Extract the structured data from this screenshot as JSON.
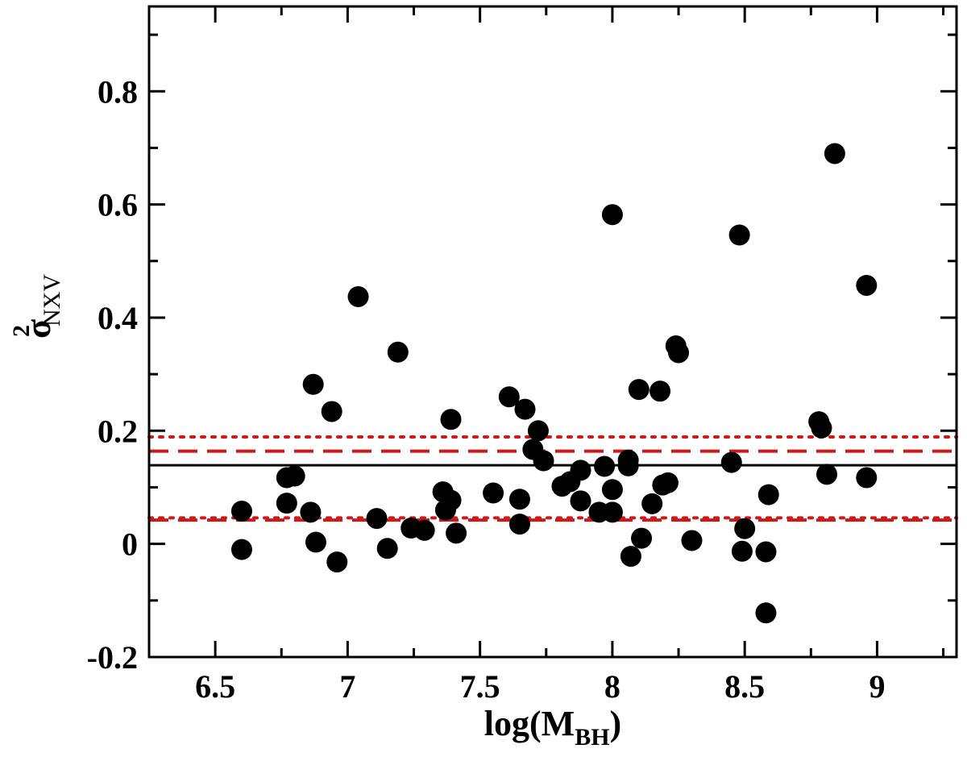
{
  "chart_data": {
    "type": "scatter",
    "title": "",
    "xlabel": {
      "main": "log(M",
      "sub": "BH",
      "close": ")"
    },
    "ylabel": {
      "symbol": "σ",
      "sup": "2",
      "sub": "NXV"
    },
    "xlim": [
      6.25,
      9.3
    ],
    "ylim": [
      -0.2,
      0.95
    ],
    "xticks": [
      {
        "value": 6.5,
        "label": "6.5"
      },
      {
        "value": 7,
        "label": "7"
      },
      {
        "value": 7.5,
        "label": "7.5"
      },
      {
        "value": 8,
        "label": "8"
      },
      {
        "value": 8.5,
        "label": "8.5"
      },
      {
        "value": 9,
        "label": "9"
      }
    ],
    "yticks": [
      {
        "value": -0.2,
        "label": "-0.2"
      },
      {
        "value": 0,
        "label": "0"
      },
      {
        "value": 0.2,
        "label": "0.2"
      },
      {
        "value": 0.4,
        "label": "0.4"
      },
      {
        "value": 0.6,
        "label": "0.6"
      },
      {
        "value": 0.8,
        "label": "0.8"
      }
    ],
    "xminor": [
      6.25,
      6.75,
      7.25,
      7.75,
      8.25,
      8.75,
      9.25
    ],
    "yminor": [
      -0.1,
      0.1,
      0.3,
      0.5,
      0.7,
      0.9
    ],
    "grid": false,
    "reference_lines": [
      {
        "name": "mean",
        "y": 0.139,
        "style": "solid",
        "color": "#000000"
      },
      {
        "name": "upper-dashed",
        "y": 0.164,
        "style": "dashed",
        "color": "#cc1a1a"
      },
      {
        "name": "upper-dotted",
        "y": 0.189,
        "style": "dotted",
        "color": "#cc1a1a"
      },
      {
        "name": "lower-dashed",
        "y": 0.042,
        "style": "dashed",
        "color": "#cc1a1a"
      },
      {
        "name": "lower-dotted",
        "y": 0.046,
        "style": "dotted",
        "color": "#cc1a1a"
      }
    ],
    "points": [
      [
        6.6,
        0.058
      ],
      [
        6.6,
        -0.01
      ],
      [
        6.77,
        0.117
      ],
      [
        6.8,
        0.12
      ],
      [
        6.77,
        0.072
      ],
      [
        6.86,
        0.056
      ],
      [
        6.87,
        0.282
      ],
      [
        6.88,
        0.003
      ],
      [
        6.94,
        0.234
      ],
      [
        6.96,
        -0.032
      ],
      [
        7.04,
        0.437
      ],
      [
        7.11,
        0.045
      ],
      [
        7.15,
        -0.008
      ],
      [
        7.19,
        0.339
      ],
      [
        7.24,
        0.028
      ],
      [
        7.29,
        0.024
      ],
      [
        7.36,
        0.092
      ],
      [
        7.37,
        0.06
      ],
      [
        7.39,
        0.22
      ],
      [
        7.39,
        0.077
      ],
      [
        7.41,
        0.019
      ],
      [
        7.55,
        0.09
      ],
      [
        7.61,
        0.26
      ],
      [
        7.65,
        0.079
      ],
      [
        7.65,
        0.035
      ],
      [
        7.67,
        0.238
      ],
      [
        7.7,
        0.167
      ],
      [
        7.72,
        0.2
      ],
      [
        7.74,
        0.147
      ],
      [
        7.81,
        0.102
      ],
      [
        7.84,
        0.11
      ],
      [
        7.88,
        0.13
      ],
      [
        7.88,
        0.076
      ],
      [
        7.95,
        0.056
      ],
      [
        7.97,
        0.137
      ],
      [
        8.0,
        0.582
      ],
      [
        8.0,
        0.096
      ],
      [
        8.0,
        0.056
      ],
      [
        8.06,
        0.148
      ],
      [
        8.06,
        0.138
      ],
      [
        8.07,
        -0.022
      ],
      [
        8.1,
        0.273
      ],
      [
        8.11,
        0.01
      ],
      [
        8.15,
        0.071
      ],
      [
        8.18,
        0.27
      ],
      [
        8.19,
        0.104
      ],
      [
        8.21,
        0.108
      ],
      [
        8.24,
        0.35
      ],
      [
        8.25,
        0.338
      ],
      [
        8.3,
        0.006
      ],
      [
        8.45,
        0.144
      ],
      [
        8.48,
        0.546
      ],
      [
        8.49,
        -0.013
      ],
      [
        8.5,
        0.027
      ],
      [
        8.58,
        -0.014
      ],
      [
        8.58,
        -0.122
      ],
      [
        8.59,
        0.087
      ],
      [
        8.78,
        0.216
      ],
      [
        8.79,
        0.205
      ],
      [
        8.81,
        0.123
      ],
      [
        8.84,
        0.69
      ],
      [
        8.96,
        0.457
      ],
      [
        8.96,
        0.117
      ]
    ]
  }
}
